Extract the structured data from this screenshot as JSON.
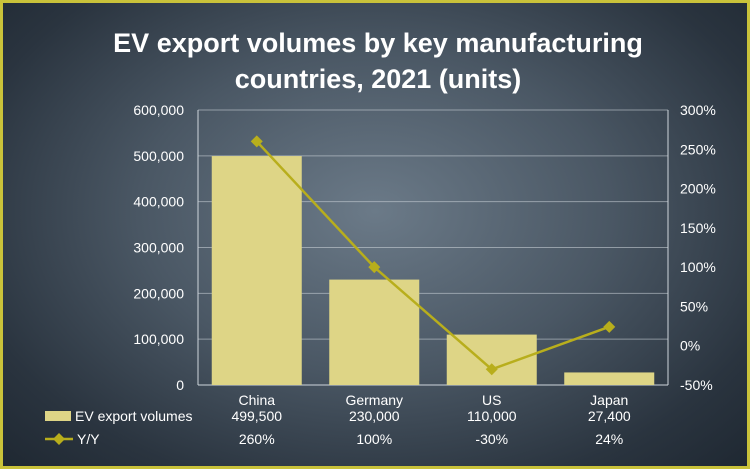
{
  "chart_data": {
    "type": "bar",
    "title": "EV export volumes by key manufacturing countries, 2021 (units)",
    "categories": [
      "China",
      "Germany",
      "US",
      "Japan"
    ],
    "series": [
      {
        "name": "EV export volumes",
        "type": "bar",
        "axis": "left",
        "values": [
          499500,
          230000,
          110000,
          27400
        ],
        "labels": [
          "499,500",
          "230,000",
          "110,000",
          "27,400"
        ],
        "color": "#ded586"
      },
      {
        "name": "Y/Y",
        "type": "line",
        "axis": "right",
        "values": [
          260,
          100,
          -30,
          24
        ],
        "labels": [
          "260%",
          "100%",
          "-30%",
          "24%"
        ],
        "color": "#b8ae1c"
      }
    ],
    "y_left": {
      "min": 0,
      "max": 600000,
      "step": 100000,
      "ticks": [
        "0",
        "100,000",
        "200,000",
        "300,000",
        "400,000",
        "500,000",
        "600,000"
      ]
    },
    "y_right": {
      "min": -50,
      "max": 300,
      "step": 50,
      "ticks": [
        "-50%",
        "0%",
        "50%",
        "100%",
        "150%",
        "200%",
        "250%",
        "300%"
      ]
    },
    "grid": true,
    "legend": "data-table-bottom"
  }
}
